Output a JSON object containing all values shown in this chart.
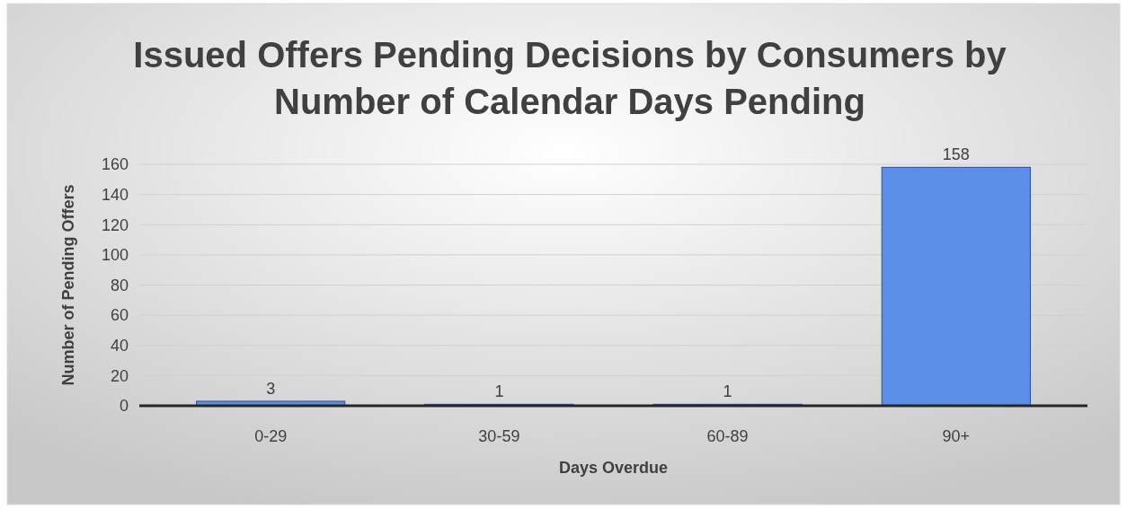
{
  "chart_data": {
    "type": "bar",
    "title": "Issued Offers Pending Decisions by Consumers by Number of Calendar Days Pending",
    "xlabel": "Days Overdue",
    "ylabel": "Number of Pending Offers",
    "categories": [
      "0-29",
      "30-59",
      "60-89",
      "90+"
    ],
    "values": [
      3,
      1,
      1,
      158
    ],
    "color": "#5b8ee6",
    "ylim": [
      0,
      160
    ],
    "yticks": [
      0,
      20,
      40,
      60,
      80,
      100,
      120,
      140,
      160
    ],
    "grid": true,
    "data_labels": true
  }
}
